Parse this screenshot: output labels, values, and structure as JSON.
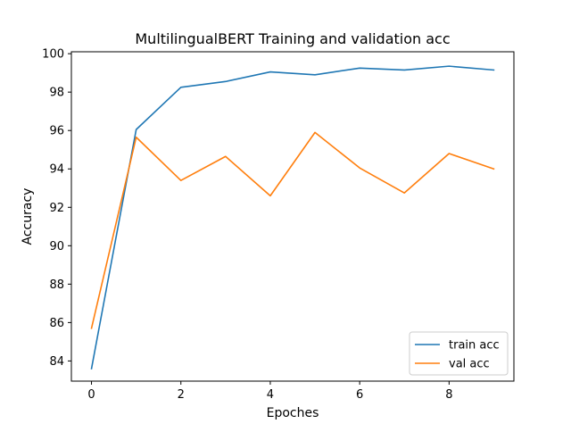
{
  "chart_data": {
    "type": "line",
    "title": "MultilingualBERT Training and validation acc",
    "xlabel": "Epoches",
    "ylabel": "Accuracy",
    "x": [
      0,
      1,
      2,
      3,
      4,
      5,
      6,
      7,
      8,
      9
    ],
    "xlim": [
      -0.45,
      9.45
    ],
    "ylim": [
      82.95,
      100.1
    ],
    "xticks": [
      0,
      2,
      4,
      6,
      8
    ],
    "yticks": [
      84,
      86,
      88,
      90,
      92,
      94,
      96,
      98,
      100
    ],
    "grid": false,
    "legend_position": "lower right",
    "series": [
      {
        "name": "train acc",
        "color": "#1f77b4",
        "values": [
          83.6,
          96.05,
          98.25,
          98.55,
          99.05,
          98.9,
          99.25,
          99.15,
          99.35,
          99.15
        ]
      },
      {
        "name": "val acc",
        "color": "#ff7f0e",
        "values": [
          85.7,
          95.65,
          93.4,
          94.65,
          92.6,
          95.9,
          94.05,
          92.75,
          94.8,
          94.0
        ]
      }
    ]
  }
}
